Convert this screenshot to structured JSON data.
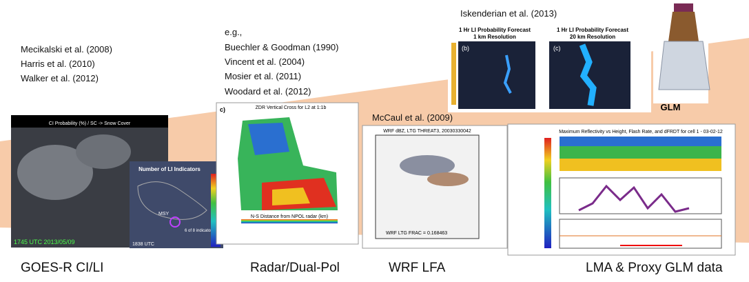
{
  "citations": {
    "iskenderian": "Iskenderian et al. (2013)",
    "radar": [
      "e.g.,",
      "Buechler & Goodman (1990)",
      "Vincent et al. (2004)",
      "Mosier et al. (2011)",
      "Woodard et al. (2012)"
    ],
    "goes": [
      "Mecikalski et al. (2008)",
      "Harris et al. (2010)",
      "Walker et al. (2012)"
    ],
    "wrf": "McCaul et al. (2009)"
  },
  "panels": {
    "li_forecast": {
      "title": "1 Hr LI Probability Forecast",
      "left": "1 km Resolution",
      "right": "20 km Resolution",
      "left_tag": "(b)",
      "right_tag": "(c)"
    },
    "goes_image": {
      "header": "CI Probability (%) / SC -> Snow Cover",
      "stamp": "1745 UTC 2013/05/09"
    },
    "li_indicators": {
      "title": "Number of LI Indicators",
      "station": "MSY",
      "note": "6 of 8 indicators",
      "time": "1838 UTC"
    },
    "radar_image": {
      "tag": "c)",
      "title": "ZDR Vertical Cross for L2 at 1:1b",
      "xlabel": "N-S Distance from NPOL radar (km)"
    },
    "wrf_image": {
      "title": "WRF dBZ, LTG THREAT3, 20030330042",
      "footer": "WRF LTG FRAC = 0.168463"
    },
    "lma_image": {
      "title": "Maximum Reflectivity vs Height, Flash Rate, and dFRDT for cell 1 - 03-02-12"
    },
    "glm": "GLM"
  },
  "labels": [
    "GOES-R CI/LI",
    "Radar/Dual-Pol",
    "WRF LFA",
    "LMA & Proxy GLM data"
  ]
}
